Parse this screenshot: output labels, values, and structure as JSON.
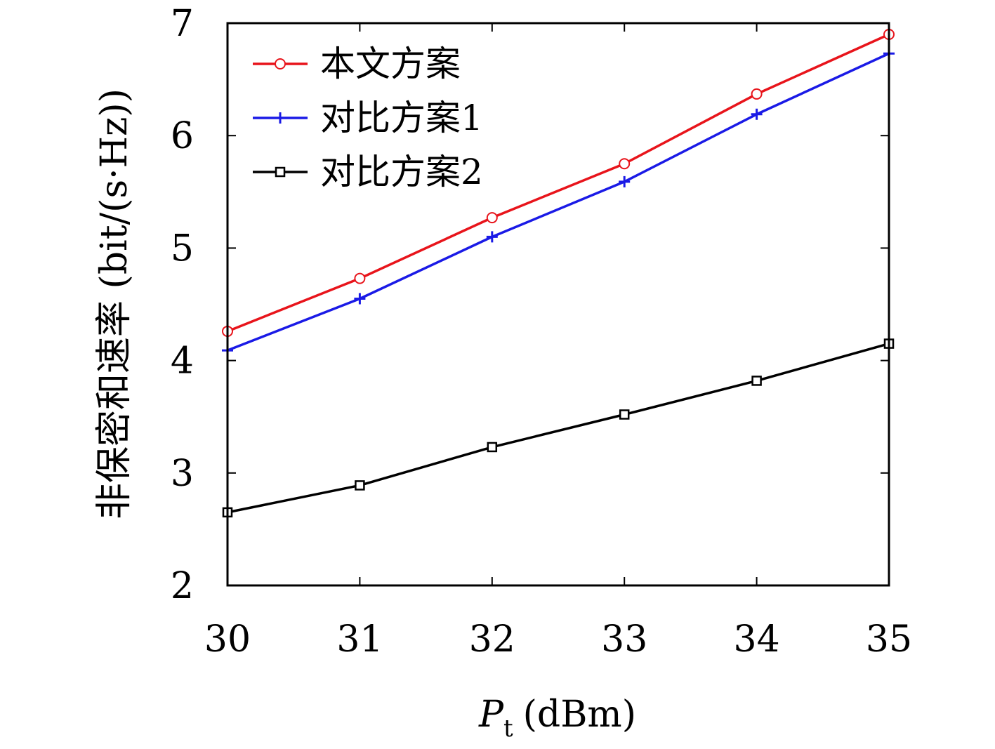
{
  "chart_data": {
    "type": "line",
    "x": [
      30,
      31,
      32,
      33,
      34,
      35
    ],
    "xlim": [
      30,
      35
    ],
    "ylim": [
      2,
      7
    ],
    "xticks": [
      "30",
      "31",
      "32",
      "33",
      "34",
      "35"
    ],
    "yticks": [
      "2",
      "3",
      "4",
      "5",
      "6",
      "7"
    ],
    "xlabel": {
      "symbol": "P",
      "subscript": "t",
      "unit": "(dBm)"
    },
    "ylabel": "非保密和速率 (bit/(s·Hz))",
    "grid": false,
    "legend_position": "top-left",
    "series": [
      {
        "name": "本文方案",
        "color": "#e8141b",
        "marker": "circle",
        "values": [
          4.26,
          4.73,
          5.27,
          5.75,
          6.37,
          6.9
        ]
      },
      {
        "name": "对比方案1",
        "color": "#1a1ae6",
        "marker": "plus",
        "values": [
          4.09,
          4.55,
          5.1,
          5.59,
          6.19,
          6.73
        ]
      },
      {
        "name": "对比方案2",
        "color": "#000000",
        "marker": "square",
        "values": [
          2.65,
          2.89,
          3.23,
          3.52,
          3.82,
          4.15
        ]
      }
    ]
  }
}
